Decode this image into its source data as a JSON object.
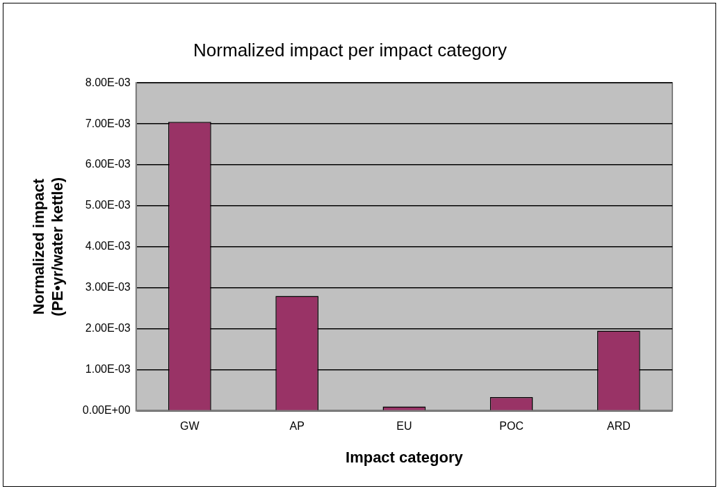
{
  "chart_data": {
    "type": "bar",
    "title": "Normalized impact per impact category",
    "xlabel": "Impact category",
    "ylabel": "Normalized impact\n(PE•yr/water kettle)",
    "categories": [
      "GW",
      "AP",
      "EU",
      "POC",
      "ARD"
    ],
    "values": [
      0.00705,
      0.0028,
      0.0001,
      0.00033,
      0.00195
    ],
    "color": "#993366",
    "ylim": [
      0,
      0.008
    ],
    "yticks": [
      {
        "value": 0,
        "label": "0.00E+00"
      },
      {
        "value": 0.001,
        "label": "1.00E-03"
      },
      {
        "value": 0.002,
        "label": "2.00E-03"
      },
      {
        "value": 0.003,
        "label": "3.00E-03"
      },
      {
        "value": 0.004,
        "label": "4.00E-03"
      },
      {
        "value": 0.005,
        "label": "5.00E-03"
      },
      {
        "value": 0.006,
        "label": "6.00E-03"
      },
      {
        "value": 0.007,
        "label": "7.00E-03"
      },
      {
        "value": 0.008,
        "label": "8.00E-03"
      }
    ],
    "grid": "y",
    "legend": false
  }
}
